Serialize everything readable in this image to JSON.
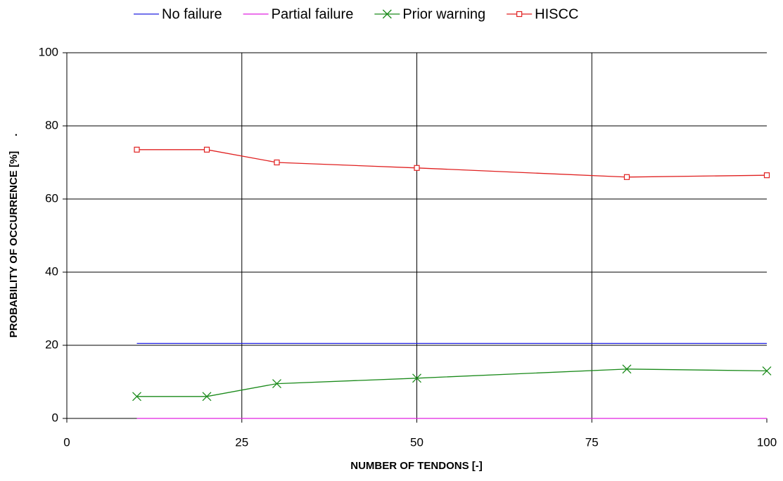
{
  "chart_data": {
    "type": "line",
    "xlabel": "NUMBER OF TENDONS [-]",
    "ylabel": "PROBABILITY OF OCCURRENCE [%]     .",
    "x": [
      10,
      20,
      30,
      50,
      80,
      100
    ],
    "series": [
      {
        "name": "No failure",
        "color": "#2020e0",
        "marker": "none",
        "values": [
          20.5,
          20.5,
          20.5,
          20.5,
          20.5,
          20.5
        ]
      },
      {
        "name": "Partial failure",
        "color": "#e020e0",
        "marker": "none",
        "values": [
          0,
          0,
          0,
          0,
          0,
          0
        ]
      },
      {
        "name": "Prior warning",
        "color": "#1a8a1a",
        "marker": "x",
        "values": [
          6,
          6,
          9.5,
          11,
          13.5,
          13
        ]
      },
      {
        "name": "HISCC",
        "color": "#e02020",
        "marker": "square",
        "values": [
          73.5,
          73.5,
          70,
          68.5,
          66,
          66.5
        ]
      }
    ],
    "xlim": [
      0,
      100
    ],
    "xticks": [
      0,
      25,
      50,
      75,
      100
    ],
    "ylim": [
      0,
      100
    ],
    "yticks": [
      0,
      20,
      40,
      60,
      80,
      100
    ],
    "grid": true,
    "legend": "top"
  }
}
